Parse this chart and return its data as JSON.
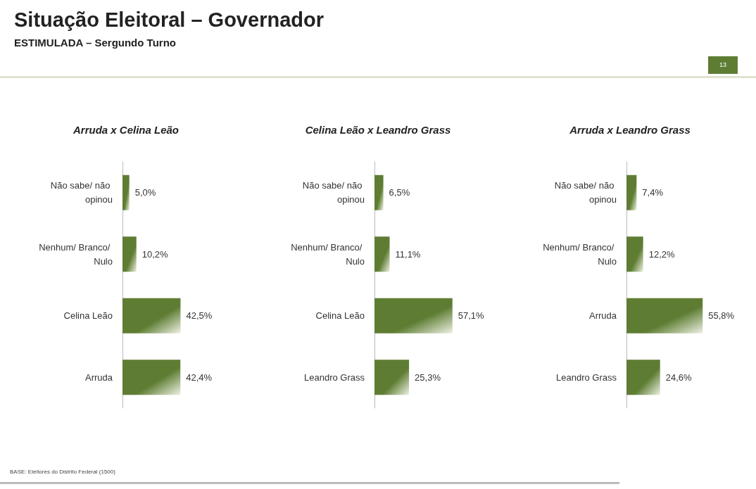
{
  "chart_data": [
    {
      "type": "bar",
      "orientation": "horizontal",
      "title": "Situação Eleitoral – Governador",
      "subtitle": "ESTIMULADA – Sergundo Turno",
      "annotations": [
        "13",
        "BASE: Eleitores do Distrito Federal (1500)"
      ],
      "legend_title": "Arruda x Celina Leão",
      "categories": [
        "Não sabe/ não opinou",
        "Nenhum/ Branco/ Nulo",
        "Celina Leão",
        "Arruda"
      ],
      "values": [
        5.0,
        10.2,
        42.5,
        42.4
      ],
      "value_labels": [
        "5,0%",
        "10,2%",
        "42,5%",
        "42,4%"
      ],
      "color": "#5e7d33"
    },
    {
      "type": "bar",
      "orientation": "horizontal",
      "legend_title": "Celina Leão x Leandro Grass",
      "categories": [
        "Não sabe/ não opinou",
        "Nenhum/ Branco/ Nulo",
        "Celina Leão",
        "Leandro Grass"
      ],
      "values": [
        6.5,
        11.1,
        57.1,
        25.3
      ],
      "value_labels": [
        "6,5%",
        "11,1%",
        "57,1%",
        "25,3%"
      ],
      "color": "#5e7d33"
    },
    {
      "type": "bar",
      "orientation": "horizontal",
      "legend_title": "Arruda x Leandro Grass",
      "categories": [
        "Não sabe/ não opinou",
        "Nenhum/ Branco/ Nulo",
        "Arruda",
        "Leandro Grass"
      ],
      "values": [
        7.4,
        12.2,
        55.8,
        24.6
      ],
      "value_labels": [
        "7,4%",
        "12,2%",
        "55,8%",
        "24,6%"
      ],
      "color": "#5e7d33"
    }
  ]
}
